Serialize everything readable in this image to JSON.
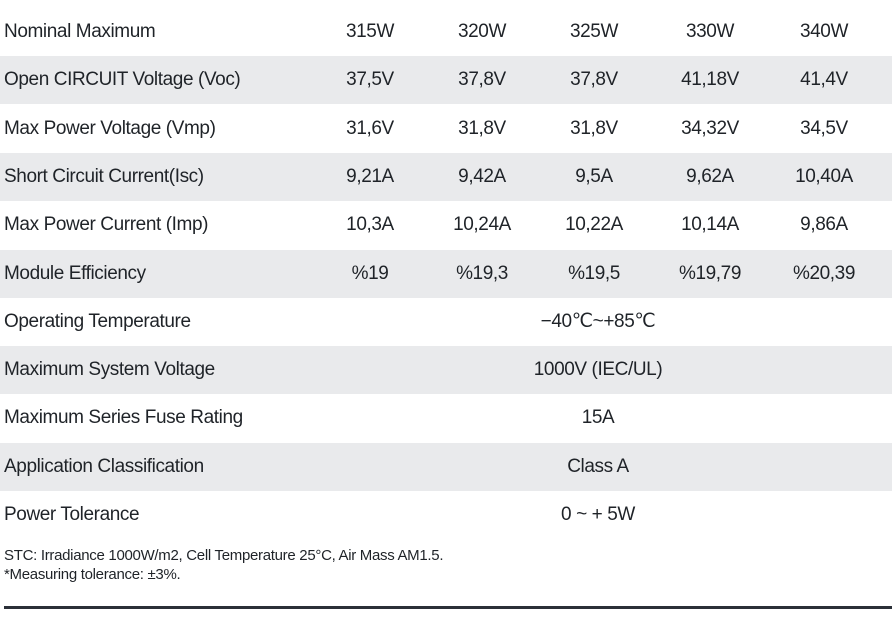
{
  "table": {
    "rows": [
      {
        "label": "Nominal Maximum",
        "values": [
          "315W",
          "320W",
          "325W",
          "330W",
          "340W"
        ]
      },
      {
        "label": "Open CIRCUIT Voltage (Voc)",
        "values": [
          "37,5V",
          "37,8V",
          "37,8V",
          "41,18V",
          "41,4V"
        ]
      },
      {
        "label": "Max Power Voltage (Vmp)",
        "values": [
          "31,6V",
          "31,8V",
          "31,8V",
          "34,32V",
          "34,5V"
        ]
      },
      {
        "label": "Short Circuit Current(Isc)",
        "values": [
          "9,21A",
          "9,42A",
          "9,5A",
          "9,62A",
          "10,40A"
        ]
      },
      {
        "label": "Max Power Current (Imp)",
        "values": [
          "10,3A",
          "10,24A",
          "10,22A",
          "10,14A",
          "9,86A"
        ]
      },
      {
        "label": "Module Efficiency",
        "values": [
          "%19",
          "%19,3",
          "%19,5",
          "%19,79",
          "%20,39"
        ]
      },
      {
        "label": "Operating Temperature",
        "values": [
          "−40℃~+85℃"
        ]
      },
      {
        "label": "Maximum System Voltage",
        "values": [
          "1000V (IEC/UL)"
        ]
      },
      {
        "label": "Maximum Series Fuse Rating",
        "values": [
          "15A"
        ]
      },
      {
        "label": "Application Classification",
        "values": [
          "Class A"
        ]
      },
      {
        "label": "Power Tolerance",
        "values": [
          "0 ~ + 5W"
        ]
      }
    ]
  },
  "notes": [
    "STC: Irradiance 1000W/m2, Cell Temperature 25°C, Air Mass AM1.5.",
    "*Measuring tolerance: ±3%."
  ]
}
